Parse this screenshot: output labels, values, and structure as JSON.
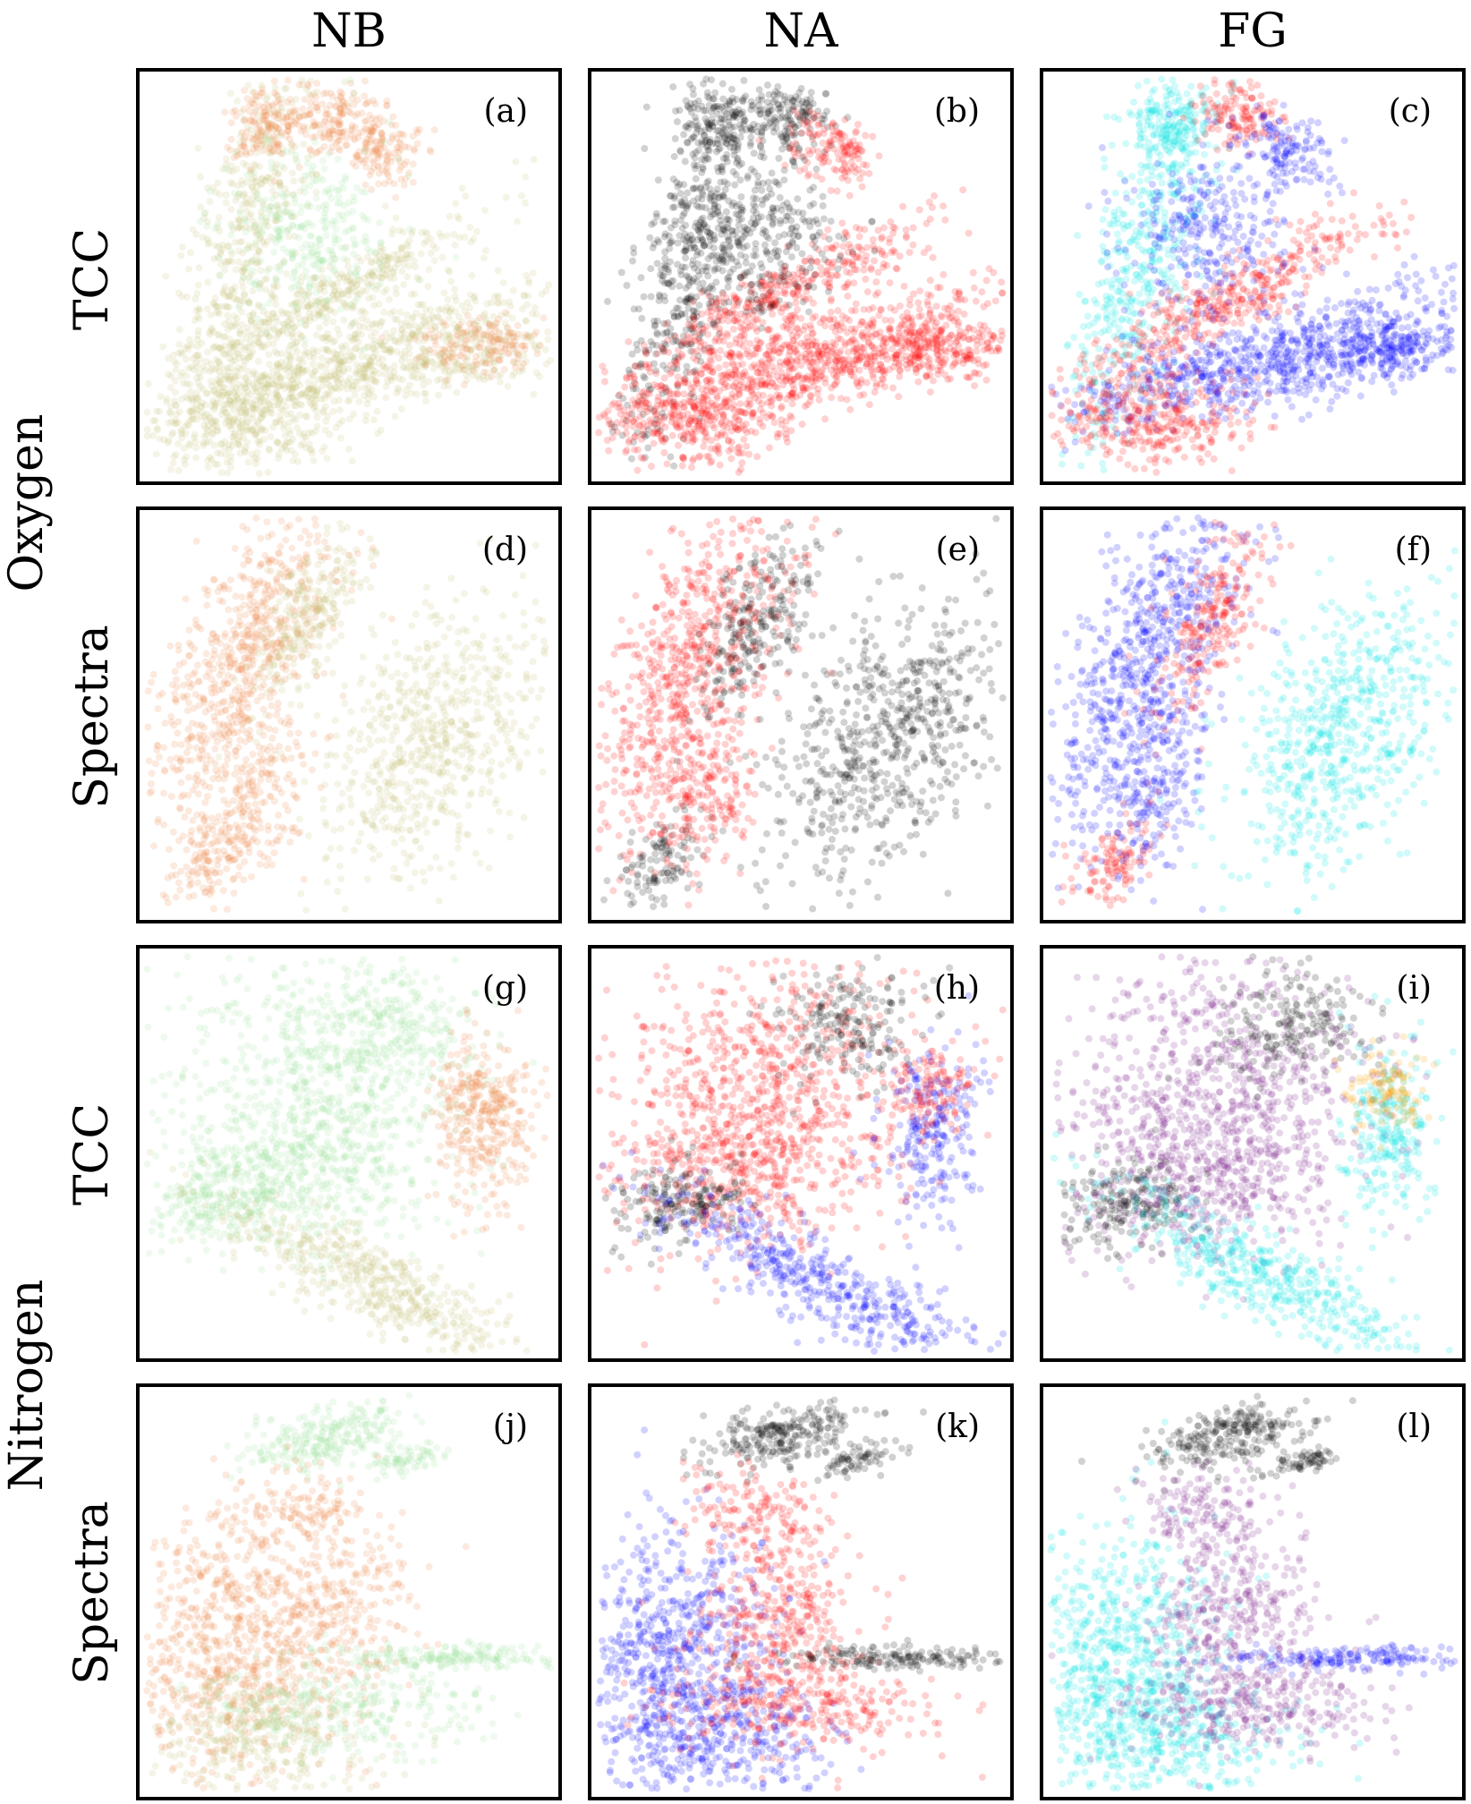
{
  "column_headers": [
    "NB",
    "NA",
    "FG"
  ],
  "row_labels": [
    "TCC",
    "Spectra",
    "TCC",
    "Spectra"
  ],
  "group_labels": [
    "Oxygen",
    "Nitrogen"
  ],
  "panel_labels": [
    "(a)",
    "(b)",
    "(c)",
    "(d)",
    "(e)",
    "(f)",
    "(g)",
    "(h)",
    "(i)",
    "(j)",
    "(k)",
    "(l)"
  ],
  "colors": {
    "nb_orange": "#f08a4b",
    "nb_green": "#9ee6a0",
    "nb_mix": "#c8c47a",
    "black": "#000000",
    "red": "#ff0000",
    "blue": "#0000ff",
    "cyan": "#00e5e5",
    "purple": "#7a1a8c",
    "orange": "#ff9f00"
  },
  "chart_data": {
    "type": "scatter",
    "title": "",
    "xlabel": "",
    "ylabel": "",
    "grid": false,
    "axes_ticks": false,
    "panels": [
      {
        "label": "(a)",
        "shape": "oxygen-tcc",
        "color_scheme": "NB"
      },
      {
        "label": "(b)",
        "shape": "oxygen-tcc",
        "color_scheme": "NA"
      },
      {
        "label": "(c)",
        "shape": "oxygen-tcc",
        "color_scheme": "FG"
      },
      {
        "label": "(d)",
        "shape": "oxygen-spectra",
        "color_scheme": "NB"
      },
      {
        "label": "(e)",
        "shape": "oxygen-spectra",
        "color_scheme": "NA"
      },
      {
        "label": "(f)",
        "shape": "oxygen-spectra",
        "color_scheme": "FG"
      },
      {
        "label": "(g)",
        "shape": "nitrogen-tcc",
        "color_scheme": "NB"
      },
      {
        "label": "(h)",
        "shape": "nitrogen-tcc",
        "color_scheme": "NA"
      },
      {
        "label": "(i)",
        "shape": "nitrogen-tcc",
        "color_scheme": "FG"
      },
      {
        "label": "(j)",
        "shape": "nitrogen-spectra",
        "color_scheme": "NB"
      },
      {
        "label": "(k)",
        "shape": "nitrogen-spectra",
        "color_scheme": "NA"
      },
      {
        "label": "(l)",
        "shape": "nitrogen-spectra",
        "color_scheme": "FG"
      }
    ]
  }
}
